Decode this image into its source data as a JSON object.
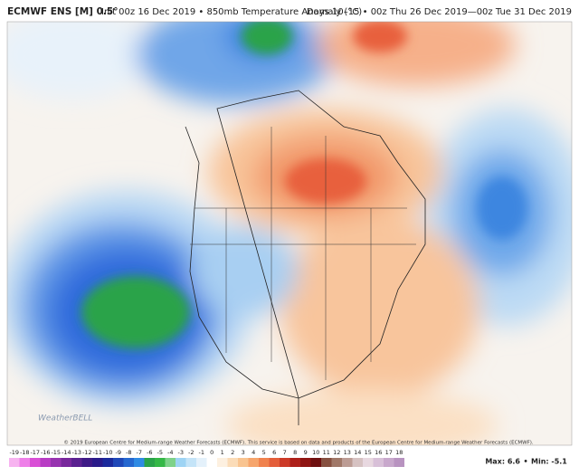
{
  "header": {
    "model": "ECMWF ENS [M] 0.5°",
    "init": "Init 00z 16 Dec 2019 • 850mb Temperature Anomaly (°C)",
    "valid": "Days 10–15 • 00z Thu 26 Dec 2019—00z Tue 31 Dec 2019"
  },
  "footer": {
    "copyright": "© 2019 European Centre for Medium-range Weather Forecasts (ECMWF). This service is based on data and products of the European Centre for Medium-range Weather Forecasts (ECMWF).",
    "logo": "WeatherBELL",
    "max": "Max: 6.6",
    "separator": "•",
    "min": "Min: -5.1"
  },
  "colorbar": {
    "labels": [
      -19,
      -18,
      -17,
      -16,
      -15,
      -14,
      -13,
      -12,
      -11,
      -10,
      -9,
      -8,
      -7,
      -6,
      -5,
      -4,
      -3,
      -2,
      -1,
      0,
      1,
      2,
      3,
      4,
      5,
      6,
      7,
      8,
      9,
      10,
      11,
      12,
      13,
      14,
      15,
      16,
      17,
      18
    ],
    "colors": [
      "#f7b3f0",
      "#ee7fe8",
      "#d94fd6",
      "#b83cc4",
      "#9733b0",
      "#78289c",
      "#5a2190",
      "#3e1a86",
      "#2a1b8a",
      "#1b2a9c",
      "#1f48b8",
      "#2668d0",
      "#2f8be4",
      "#2aa34a",
      "#35b847",
      "#7ed28a",
      "#9ed4f4",
      "#c4e4f8",
      "#e4f1fb",
      "#ffffff",
      "#fdf0e0",
      "#fbdcb8",
      "#f9c490",
      "#f6a56c",
      "#f0824e",
      "#e45e3a",
      "#cc3a28",
      "#ad2019",
      "#8e1512",
      "#6e1010",
      "#865040",
      "#a07868",
      "#bc9c94",
      "#d6c2c2",
      "#e8d8e0",
      "#d8c0d8",
      "#c8a8cc",
      "#b893c0"
    ]
  }
}
